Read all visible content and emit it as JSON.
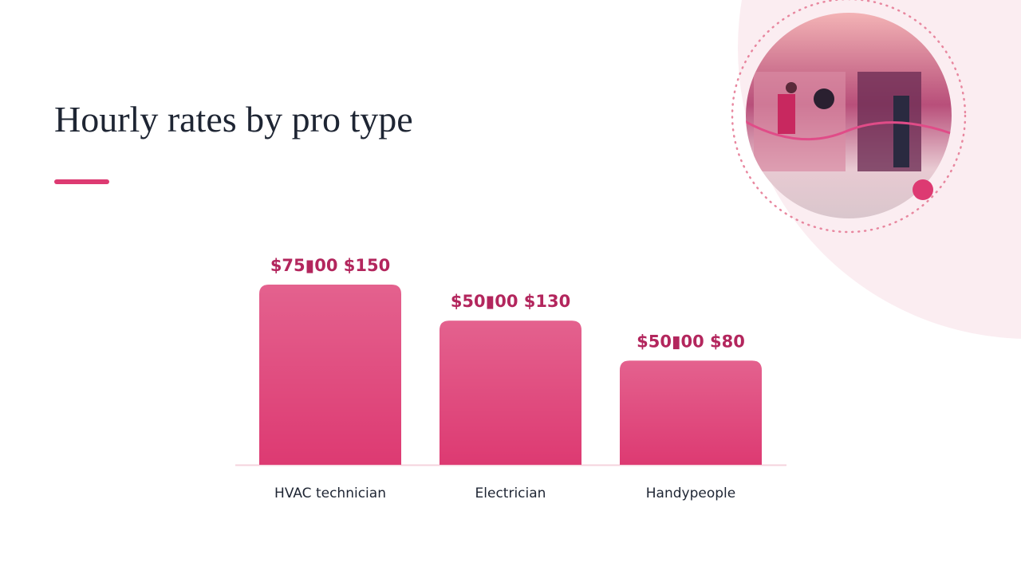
{
  "chart_data": {
    "type": "bar",
    "title": "Hourly rates by pro type",
    "categories": [
      "HVAC technician",
      "Electrician",
      "Handypeople"
    ],
    "values": [
      112.5,
      90,
      65
    ],
    "value_labels": [
      "$75▮00 $150",
      "$50▮00 $130",
      "$50▮00 $80"
    ],
    "color": "#dd3a72"
  }
}
